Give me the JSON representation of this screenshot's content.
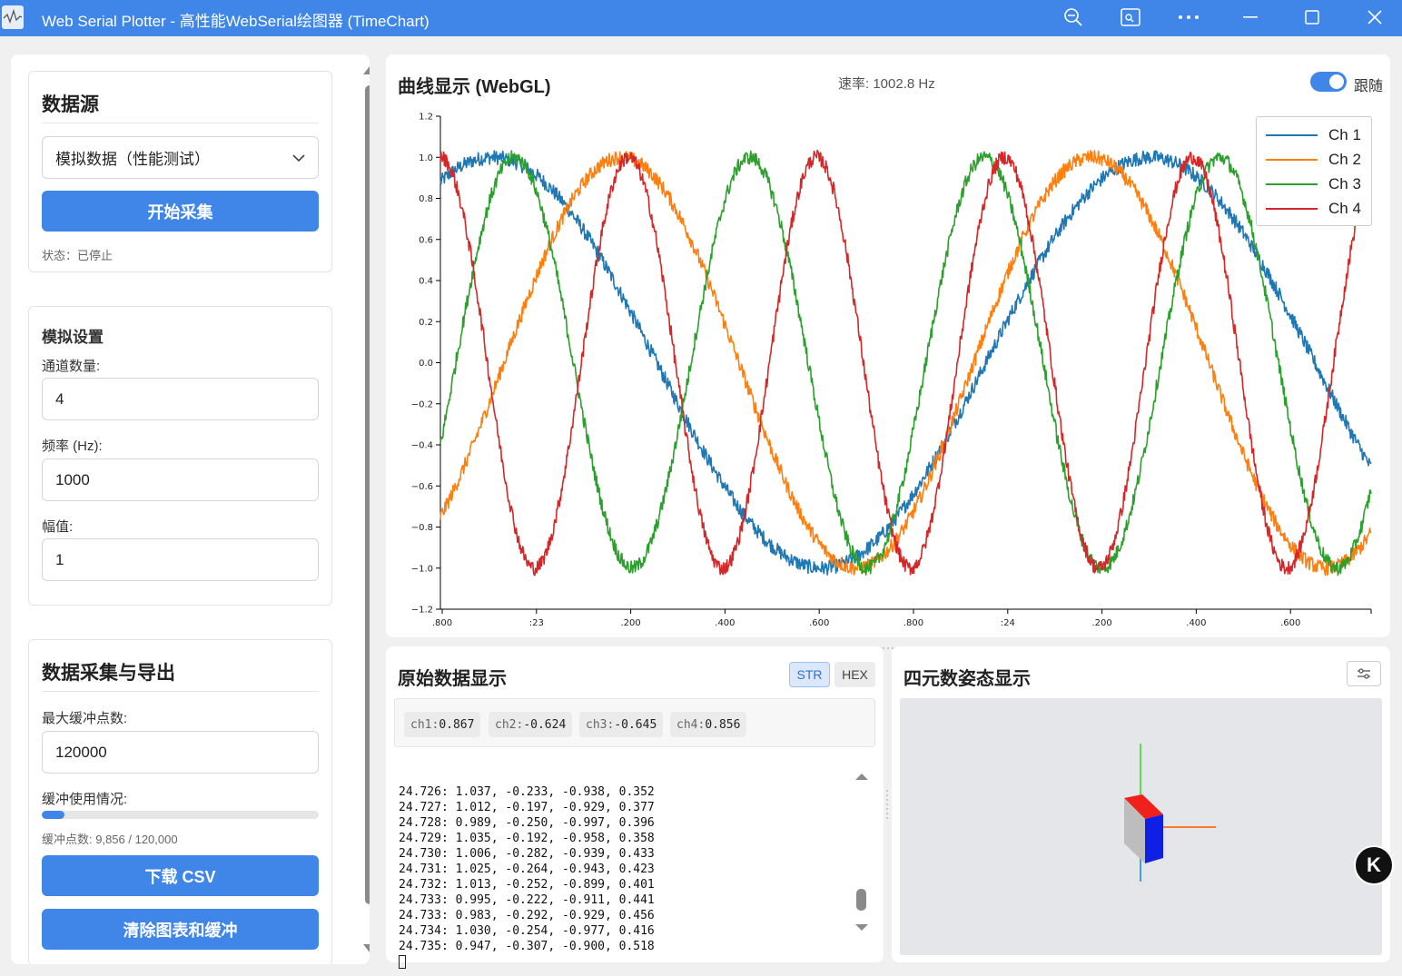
{
  "window": {
    "title": "Web Serial Plotter - 高性能WebSerial绘图器 (TimeChart)",
    "icons": [
      "zoom-icon",
      "screenshot-icon",
      "more-icon",
      "minimize-icon",
      "maximize-icon",
      "close-icon"
    ]
  },
  "sidebar": {
    "source": {
      "heading": "数据源",
      "selected": "模拟数据（性能测试）",
      "start_button": "开始采集",
      "status": "状态：已停止"
    },
    "simulation": {
      "heading": "模拟设置",
      "channels_label": "通道数量:",
      "channels_value": "4",
      "frequency_label": "频率 (Hz):",
      "frequency_value": "1000",
      "amplitude_label": "幅值:",
      "amplitude_value": "1"
    },
    "export": {
      "heading": "数据采集与导出",
      "max_buffer_label": "最大缓冲点数:",
      "max_buffer_value": "120000",
      "buffer_usage_label": "缓冲使用情况:",
      "buffer_fraction": 0.082,
      "buffer_text": "缓冲点数: 9,856 / 120,000",
      "download_button": "下载 CSV",
      "clear_button": "清除图表和缓冲"
    }
  },
  "chart_panel": {
    "title": "曲线显示 (WebGL)",
    "rate": "速率: 1002.8 Hz",
    "follow_label": "跟随",
    "follow_on": true
  },
  "chart_data": {
    "type": "line",
    "x_tick_labels": [
      ".800",
      ":23",
      ".200",
      ".400",
      ".600",
      ".800",
      ":24",
      ".200",
      ".400",
      ".600"
    ],
    "y_ticks": [
      "1.2",
      "1.0",
      "0.8",
      "0.6",
      "0.4",
      "0.2",
      "0.0",
      "−0.2",
      "−0.4",
      "−0.6",
      "−0.8",
      "−1.0",
      "−1.2"
    ],
    "ylim": [
      -1.2,
      1.2
    ],
    "xlim": [
      22.8,
      24.78
    ],
    "legend_position": "top-right",
    "series": [
      {
        "name": "Ch 1",
        "color": "#1f77b4",
        "amplitude": 1.0,
        "period": 1.4,
        "phase_at_start": 0.88
      },
      {
        "name": "Ch 2",
        "color": "#ff7f0e",
        "amplitude": 1.0,
        "period": 1.0,
        "phase_at_start": -0.75
      },
      {
        "name": "Ch 3",
        "color": "#2ca02c",
        "amplitude": 1.0,
        "period": 0.5,
        "phase_at_start": -0.4
      },
      {
        "name": "Ch 4",
        "color": "#d62728",
        "amplitude": 1.0,
        "period": 0.4,
        "phase_at_start": 1.0
      }
    ]
  },
  "raw_panel": {
    "title": "原始数据显示",
    "modes": [
      "STR",
      "HEX"
    ],
    "active_mode": "STR",
    "chips": [
      {
        "key": "ch1:",
        "value": "0.867"
      },
      {
        "key": "ch2:",
        "value": "-0.624"
      },
      {
        "key": "ch3:",
        "value": "-0.645"
      },
      {
        "key": "ch4:",
        "value": "0.856"
      }
    ],
    "lines": [
      "24.726: 1.037, -0.233, -0.938, 0.352",
      "24.727: 1.012, -0.197, -0.929, 0.377",
      "24.728: 0.989, -0.250, -0.997, 0.396",
      "24.729: 1.035, -0.192, -0.958, 0.358",
      "24.730: 1.006, -0.282, -0.939, 0.433",
      "24.731: 1.025, -0.264, -0.943, 0.423",
      "24.732: 1.013, -0.252, -0.899, 0.401",
      "24.733: 0.995, -0.222, -0.911, 0.441",
      "24.733: 0.983, -0.292, -0.929, 0.456",
      "24.734: 1.030, -0.254, -0.977, 0.416",
      "24.735: 0.947, -0.307, -0.900, 0.518"
    ]
  },
  "quat_panel": {
    "title": "四元数姿态显示",
    "settings_icon": "sliders-icon"
  }
}
